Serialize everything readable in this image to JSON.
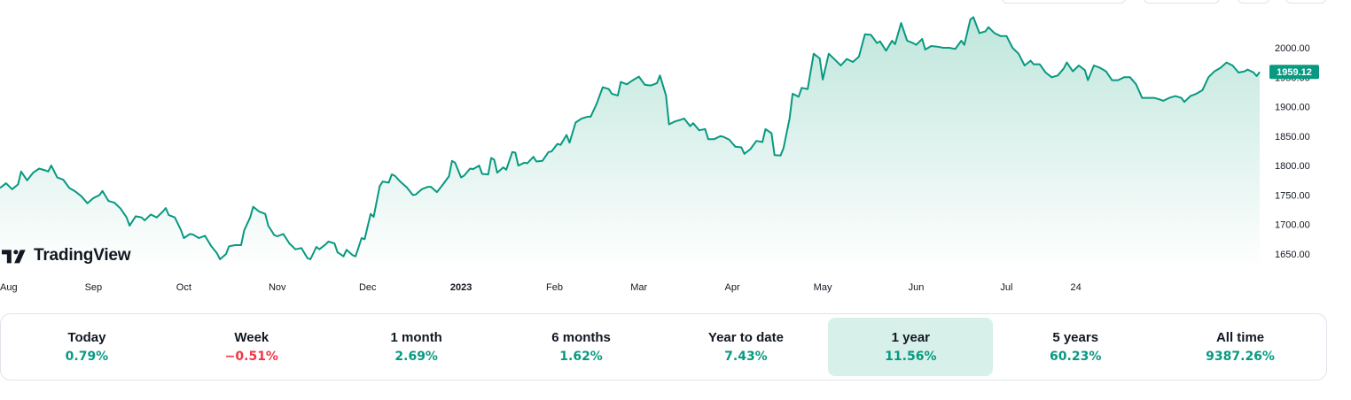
{
  "brand": {
    "name": "TradingView"
  },
  "colors": {
    "line": "#089981",
    "area_top": "#bfe6dc",
    "area_bottom": "#ffffff",
    "up": "#089981",
    "down": "#f23645",
    "active_bg": "#d7f0ea"
  },
  "chart_data": {
    "type": "area",
    "x_ticks": [
      {
        "label": "Aug",
        "day": 0
      },
      {
        "label": "Sep",
        "day": 31
      },
      {
        "label": "Oct",
        "day": 61
      },
      {
        "label": "Nov",
        "day": 92
      },
      {
        "label": "Dec",
        "day": 122
      },
      {
        "label": "2023",
        "day": 153,
        "bold": true
      },
      {
        "label": "Feb",
        "day": 184
      },
      {
        "label": "Mar",
        "day": 212
      },
      {
        "label": "Apr",
        "day": 243
      },
      {
        "label": "May",
        "day": 273
      },
      {
        "label": "Jun",
        "day": 304
      },
      {
        "label": "Jul",
        "day": 334
      },
      {
        "label": "24",
        "day": 357
      }
    ],
    "y_ticks": [
      "2000.00",
      "1950.00",
      "1900.00",
      "1850.00",
      "1800.00",
      "1750.00",
      "1700.00",
      "1650.00"
    ],
    "ylim": [
      1630,
      2060
    ],
    "last_price": "1959.12",
    "points": [
      [
        0,
        1762
      ],
      [
        2,
        1770
      ],
      [
        4,
        1760
      ],
      [
        6,
        1768
      ],
      [
        7,
        1790
      ],
      [
        9,
        1775
      ],
      [
        11,
        1788
      ],
      [
        13,
        1795
      ],
      [
        15,
        1792
      ],
      [
        16,
        1790
      ],
      [
        17,
        1800
      ],
      [
        19,
        1780
      ],
      [
        21,
        1776
      ],
      [
        23,
        1762
      ],
      [
        25,
        1756
      ],
      [
        27,
        1748
      ],
      [
        29,
        1736
      ],
      [
        31,
        1745
      ],
      [
        33,
        1750
      ],
      [
        34,
        1757
      ],
      [
        36,
        1740
      ],
      [
        38,
        1737
      ],
      [
        40,
        1727
      ],
      [
        42,
        1712
      ],
      [
        43,
        1698
      ],
      [
        45,
        1714
      ],
      [
        47,
        1712
      ],
      [
        48,
        1707
      ],
      [
        50,
        1717
      ],
      [
        52,
        1712
      ],
      [
        54,
        1722
      ],
      [
        55,
        1728
      ],
      [
        56,
        1716
      ],
      [
        58,
        1712
      ],
      [
        60,
        1691
      ],
      [
        61,
        1677
      ],
      [
        63,
        1684
      ],
      [
        64,
        1683
      ],
      [
        66,
        1677
      ],
      [
        68,
        1681
      ],
      [
        70,
        1664
      ],
      [
        72,
        1651
      ],
      [
        73,
        1641
      ],
      [
        75,
        1650
      ],
      [
        76,
        1663
      ],
      [
        78,
        1665
      ],
      [
        80,
        1665
      ],
      [
        81,
        1690
      ],
      [
        83,
        1712
      ],
      [
        84,
        1730
      ],
      [
        86,
        1722
      ],
      [
        88,
        1718
      ],
      [
        89,
        1698
      ],
      [
        91,
        1682
      ],
      [
        92,
        1680
      ],
      [
        94,
        1684
      ],
      [
        96,
        1668
      ],
      [
        98,
        1658
      ],
      [
        100,
        1660
      ],
      [
        102,
        1643
      ],
      [
        103,
        1641
      ],
      [
        105,
        1662
      ],
      [
        106,
        1658
      ],
      [
        108,
        1666
      ],
      [
        109,
        1671
      ],
      [
        111,
        1668
      ],
      [
        112,
        1653
      ],
      [
        114,
        1646
      ],
      [
        115,
        1657
      ],
      [
        117,
        1648
      ],
      [
        118,
        1646
      ],
      [
        120,
        1677
      ],
      [
        121,
        1675
      ],
      [
        123,
        1718
      ],
      [
        124,
        1713
      ],
      [
        126,
        1765
      ],
      [
        127,
        1773
      ],
      [
        129,
        1771
      ],
      [
        130,
        1785
      ],
      [
        131,
        1783
      ],
      [
        133,
        1772
      ],
      [
        135,
        1763
      ],
      [
        137,
        1750
      ],
      [
        138,
        1751
      ],
      [
        140,
        1760
      ],
      [
        142,
        1764
      ],
      [
        143,
        1764
      ],
      [
        145,
        1755
      ],
      [
        147,
        1768
      ],
      [
        149,
        1782
      ],
      [
        150,
        1808
      ],
      [
        151,
        1805
      ],
      [
        153,
        1780
      ],
      [
        154,
        1783
      ],
      [
        156,
        1795
      ],
      [
        157,
        1794
      ],
      [
        159,
        1800
      ],
      [
        160,
        1786
      ],
      [
        162,
        1785
      ],
      [
        163,
        1813
      ],
      [
        164,
        1810
      ],
      [
        165,
        1788
      ],
      [
        167,
        1797
      ],
      [
        168,
        1793
      ],
      [
        170,
        1823
      ],
      [
        171,
        1822
      ],
      [
        172,
        1800
      ],
      [
        174,
        1805
      ],
      [
        175,
        1804
      ],
      [
        177,
        1815
      ],
      [
        178,
        1807
      ],
      [
        180,
        1808
      ],
      [
        182,
        1823
      ],
      [
        183,
        1824
      ],
      [
        185,
        1837
      ],
      [
        186,
        1835
      ],
      [
        188,
        1852
      ],
      [
        189,
        1839
      ],
      [
        191,
        1873
      ],
      [
        193,
        1880
      ],
      [
        195,
        1883
      ],
      [
        196,
        1883
      ],
      [
        198,
        1905
      ],
      [
        200,
        1933
      ],
      [
        202,
        1930
      ],
      [
        203,
        1922
      ],
      [
        205,
        1919
      ],
      [
        206,
        1942
      ],
      [
        208,
        1938
      ],
      [
        210,
        1945
      ],
      [
        212,
        1951
      ],
      [
        214,
        1937
      ],
      [
        216,
        1936
      ],
      [
        218,
        1940
      ],
      [
        219,
        1953
      ],
      [
        221,
        1919
      ],
      [
        222,
        1870
      ],
      [
        224,
        1875
      ],
      [
        226,
        1878
      ],
      [
        227,
        1880
      ],
      [
        229,
        1867
      ],
      [
        230,
        1872
      ],
      [
        232,
        1860
      ],
      [
        234,
        1862
      ],
      [
        235,
        1845
      ],
      [
        237,
        1845
      ],
      [
        239,
        1850
      ],
      [
        240,
        1849
      ],
      [
        242,
        1844
      ],
      [
        244,
        1832
      ],
      [
        246,
        1831
      ],
      [
        247,
        1820
      ],
      [
        249,
        1828
      ],
      [
        251,
        1842
      ],
      [
        253,
        1840
      ],
      [
        254,
        1862
      ],
      [
        256,
        1855
      ],
      [
        257,
        1818
      ],
      [
        259,
        1817
      ],
      [
        260,
        1830
      ],
      [
        262,
        1880
      ],
      [
        263,
        1922
      ],
      [
        265,
        1917
      ],
      [
        266,
        1932
      ],
      [
        268,
        1930
      ],
      [
        270,
        1990
      ],
      [
        272,
        1982
      ],
      [
        273,
        1946
      ],
      [
        275,
        1990
      ],
      [
        277,
        1980
      ],
      [
        279,
        1970
      ],
      [
        281,
        1981
      ],
      [
        283,
        1976
      ],
      [
        285,
        1985
      ],
      [
        287,
        2023
      ],
      [
        289,
        2022
      ],
      [
        291,
        2008
      ],
      [
        292,
        2011
      ],
      [
        294,
        1995
      ],
      [
        296,
        2012
      ],
      [
        297,
        2006
      ],
      [
        299,
        2042
      ],
      [
        301,
        2012
      ],
      [
        303,
        2008
      ],
      [
        304,
        2005
      ],
      [
        306,
        2015
      ],
      [
        307,
        1997
      ],
      [
        309,
        2003
      ],
      [
        311,
        2002
      ],
      [
        313,
        2000
      ],
      [
        315,
        2000
      ],
      [
        317,
        1998
      ],
      [
        319,
        2012
      ],
      [
        320,
        2005
      ],
      [
        322,
        2048
      ],
      [
        323,
        2052
      ],
      [
        325,
        2025
      ],
      [
        327,
        2028
      ],
      [
        328,
        2035
      ],
      [
        330,
        2025
      ],
      [
        332,
        2020
      ],
      [
        334,
        2020
      ],
      [
        336,
        2000
      ],
      [
        338,
        1990
      ],
      [
        340,
        1970
      ],
      [
        342,
        1978
      ],
      [
        343,
        1972
      ],
      [
        345,
        1972
      ],
      [
        347,
        1958
      ],
      [
        349,
        1950
      ],
      [
        351,
        1953
      ],
      [
        353,
        1965
      ],
      [
        354,
        1975
      ],
      [
        356,
        1960
      ],
      [
        358,
        1970
      ],
      [
        360,
        1962
      ],
      [
        361,
        1945
      ],
      [
        363,
        1970
      ],
      [
        365,
        1966
      ],
      [
        367,
        1960
      ],
      [
        369,
        1945
      ],
      [
        371,
        1945
      ],
      [
        373,
        1950
      ],
      [
        375,
        1950
      ],
      [
        377,
        1938
      ],
      [
        379,
        1915
      ],
      [
        381,
        1915
      ],
      [
        383,
        1915
      ],
      [
        385,
        1912
      ],
      [
        386,
        1910
      ],
      [
        388,
        1915
      ],
      [
        390,
        1918
      ],
      [
        392,
        1915
      ],
      [
        393,
        1908
      ],
      [
        395,
        1918
      ],
      [
        397,
        1922
      ],
      [
        399,
        1928
      ],
      [
        401,
        1950
      ],
      [
        403,
        1960
      ],
      [
        405,
        1966
      ],
      [
        407,
        1975
      ],
      [
        409,
        1970
      ],
      [
        411,
        1958
      ],
      [
        413,
        1960
      ],
      [
        414,
        1963
      ],
      [
        416,
        1958
      ],
      [
        417,
        1952
      ],
      [
        418,
        1959
      ]
    ]
  },
  "periods": [
    {
      "name": "Today",
      "value": "0.79%",
      "dir": "up"
    },
    {
      "name": "Week",
      "value": "−0.51%",
      "dir": "down"
    },
    {
      "name": "1 month",
      "value": "2.69%",
      "dir": "up"
    },
    {
      "name": "6 months",
      "value": "1.62%",
      "dir": "up"
    },
    {
      "name": "Year to date",
      "value": "7.43%",
      "dir": "up"
    },
    {
      "name": "1 year",
      "value": "11.56%",
      "dir": "up",
      "active": true
    },
    {
      "name": "5 years",
      "value": "60.23%",
      "dir": "up"
    },
    {
      "name": "All time",
      "value": "9387.26%",
      "dir": "up"
    }
  ]
}
